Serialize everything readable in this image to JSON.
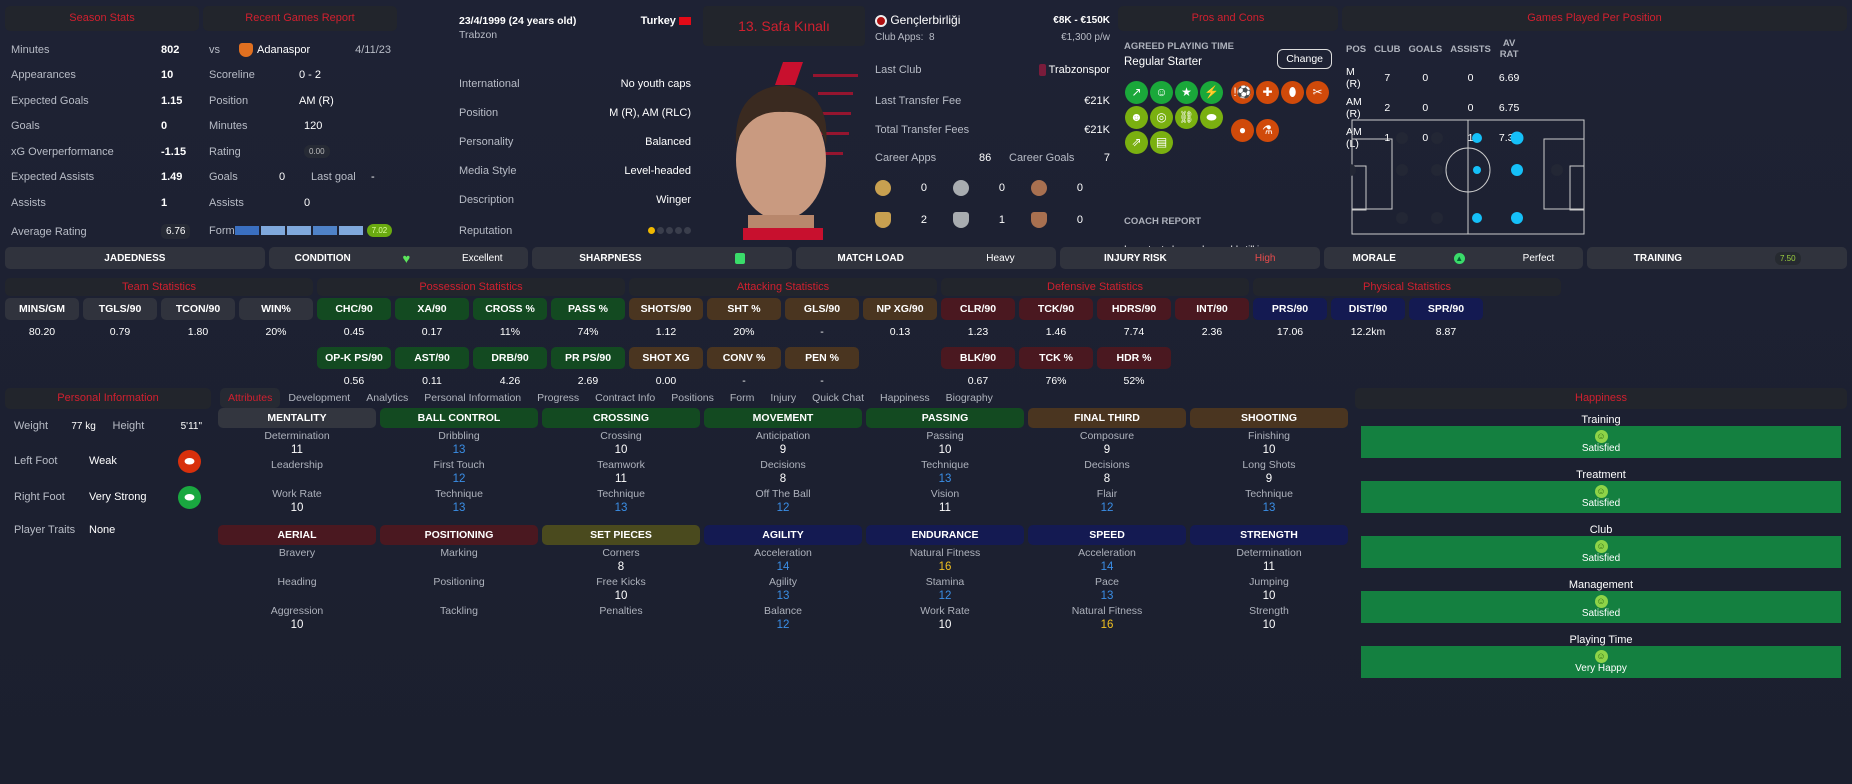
{
  "season_stats": {
    "title": "Season Stats",
    "rows": [
      {
        "label": "Minutes",
        "value": "802"
      },
      {
        "label": "Appearances",
        "value": "10"
      },
      {
        "label": "Expected Goals",
        "value": "1.15"
      },
      {
        "label": "Goals",
        "value": "0"
      },
      {
        "label": "xG Overperformance",
        "value": "-1.15"
      },
      {
        "label": "Expected Assists",
        "value": "1.49"
      },
      {
        "label": "Assists",
        "value": "1"
      },
      {
        "label": "Average Rating",
        "value": "6.76"
      }
    ]
  },
  "recent_games": {
    "title": "Recent Games Report",
    "vs": "vs",
    "opponent": "Adanaspor",
    "date": "4/11/23",
    "scoreline_label": "Scoreline",
    "scoreline": "0 - 2",
    "position_label": "Position",
    "position": "AM (R)",
    "minutes_label": "Minutes",
    "minutes": "120",
    "rating_label": "Rating",
    "rating": "0.00",
    "goals_label": "Goals",
    "goals": "0",
    "last_goal_label": "Last goal",
    "last_goal": "-",
    "assists_label": "Assists",
    "assists": "0",
    "form_label": "Form",
    "form_rating": "7.02",
    "form_colors": [
      "#3a6fc0",
      "#7fa8dc",
      "#7fa8dc",
      "#4f82c8",
      "#7fa8dc"
    ]
  },
  "bio": {
    "dob": "23/4/1999 (24 years old)",
    "nationality": "Turkey",
    "birthplace": "Trabzon",
    "rows": [
      {
        "label": "International",
        "value": "No youth caps"
      },
      {
        "label": "Position",
        "value": "M (R), AM (RLC)"
      },
      {
        "label": "Personality",
        "value": "Balanced"
      },
      {
        "label": "Media Style",
        "value": "Level-headed"
      },
      {
        "label": "Description",
        "value": "Winger"
      }
    ],
    "reputation_label": "Reputation",
    "reputation_stars": 1,
    "reputation_max": 5
  },
  "player": {
    "name": "13. Safa Kınalı"
  },
  "club": {
    "name": "Gençlerbirliği",
    "value_range": "€8K - €150K",
    "club_apps_label": "Club Apps:",
    "club_apps": "8",
    "wage": "€1,300 p/w",
    "last_club_label": "Last Club",
    "last_club": "Trabzonspor",
    "last_fee_label": "Last Transfer Fee",
    "last_fee": "€21K",
    "total_fees_label": "Total Transfer Fees",
    "total_fees": "€21K",
    "career_apps_label": "Career Apps",
    "career_apps": "86",
    "career_goals_label": "Career Goals",
    "career_goals": "7",
    "medals": [
      "0",
      "0",
      "0"
    ],
    "trophies": [
      "2",
      "1",
      "0"
    ]
  },
  "pros_cons": {
    "title": "Pros and Cons",
    "agreed_label": "AGREED PLAYING TIME",
    "agreed": "Regular Starter",
    "change_label": "Change",
    "coach_report_label": "COACH REPORT",
    "coach_report": "Important player who could still improve",
    "pros_icons": [
      "trend-up",
      "cone-smile",
      "star",
      "boots",
      "head",
      "target",
      "chain",
      "boot",
      "cone-trend",
      "report"
    ],
    "cons_icons": [
      "ball-alert",
      "medical-cross",
      "foot",
      "broken-bone",
      "ball-head",
      "flask"
    ]
  },
  "positions": {
    "title": "Games Played Per Position",
    "headers": [
      "POS",
      "CLUB",
      "GOALS",
      "ASSISTS",
      "AV RAT"
    ],
    "rows": [
      [
        "M (R)",
        "7",
        "0",
        "0",
        "6.69"
      ],
      [
        "AM (R)",
        "2",
        "0",
        "0",
        "6.75"
      ],
      [
        "AM (L)",
        "1",
        "0",
        "1",
        "7.30"
      ]
    ]
  },
  "status": [
    {
      "label": "JADEDNESS",
      "value": ""
    },
    {
      "label": "CONDITION",
      "value": "Excellent",
      "icon": "heart"
    },
    {
      "label": "SHARPNESS",
      "value": "",
      "icon": "thumbs-up"
    },
    {
      "label": "MATCH LOAD",
      "value": "Heavy"
    },
    {
      "label": "INJURY RISK",
      "value": "High",
      "color": "#e84c4c"
    },
    {
      "label": "MORALE",
      "value": "Perfect",
      "icon": "arrow-up"
    },
    {
      "label": "TRAINING",
      "value": "7.50"
    }
  ],
  "stat_groups": [
    {
      "title": "Team Statistics",
      "color": "#30333d",
      "row1": [
        [
          "MINS/GM",
          "80.20"
        ],
        [
          "TGLS/90",
          "0.79"
        ],
        [
          "TCON/90",
          "1.80"
        ],
        [
          "WIN%",
          "20%"
        ]
      ],
      "row2": []
    },
    {
      "title": "Possession Statistics",
      "color": "#134a21",
      "row1": [
        [
          "CHC/90",
          "0.45"
        ],
        [
          "XA/90",
          "0.17"
        ],
        [
          "CROSS %",
          "11%"
        ],
        [
          "PASS %",
          "74%"
        ]
      ],
      "row2": [
        [
          "OP-K PS/90",
          "0.56"
        ],
        [
          "AST/90",
          "0.11"
        ],
        [
          "DRB/90",
          "4.26"
        ],
        [
          "PR PS/90",
          "2.69"
        ]
      ]
    },
    {
      "title": "Attacking Statistics",
      "color": "#4a3520",
      "row1": [
        [
          "SHOTS/90",
          "1.12"
        ],
        [
          "SHT %",
          "20%"
        ],
        [
          "GLS/90",
          "-"
        ],
        [
          "NP XG/90",
          "0.13"
        ]
      ],
      "row2": [
        [
          "SHOT XG",
          "0.00"
        ],
        [
          "CONV %",
          "-"
        ],
        [
          "PEN %",
          "-"
        ]
      ]
    },
    {
      "title": "Defensive Statistics",
      "color": "#4a1820",
      "row1": [
        [
          "CLR/90",
          "1.23"
        ],
        [
          "TCK/90",
          "1.46"
        ],
        [
          "HDRS/90",
          "7.74"
        ],
        [
          "INT/90",
          "2.36"
        ]
      ],
      "row2": [
        [
          "BLK/90",
          "0.67"
        ],
        [
          "TCK %",
          "76%"
        ],
        [
          "HDR %",
          "52%"
        ]
      ]
    },
    {
      "title": "Physical Statistics",
      "color": "#141a52",
      "row1": [
        [
          "PRS/90",
          "17.06"
        ],
        [
          "DIST/90",
          "12.2km"
        ],
        [
          "SPR/90",
          "8.87"
        ]
      ],
      "row2": []
    }
  ],
  "personal": {
    "title": "Personal Information",
    "weight_label": "Weight",
    "weight": "77 kg",
    "height_label": "Height",
    "height": "5'11\"",
    "left_foot_label": "Left Foot",
    "left_foot": "Weak",
    "right_foot_label": "Right Foot",
    "right_foot": "Very Strong",
    "traits_label": "Player Traits",
    "traits": "None"
  },
  "tabs": [
    "Attributes",
    "Development",
    "Analytics",
    "Personal Information",
    "Progress",
    "Contract Info",
    "Positions",
    "Form",
    "Injury",
    "Quick Chat",
    "Happiness",
    "Biography"
  ],
  "attributes": [
    [
      {
        "title": "MENTALITY",
        "color": "#33363f",
        "items": [
          [
            "Determination",
            "11"
          ],
          [
            "Leadership",
            ""
          ],
          [
            "Work Rate",
            "10"
          ]
        ]
      },
      {
        "title": "BALL CONTROL",
        "color": "#134a21",
        "items": [
          [
            "Dribbling",
            "13"
          ],
          [
            "First Touch",
            "12"
          ],
          [
            "Technique",
            "13"
          ]
        ]
      },
      {
        "title": "CROSSING",
        "color": "#134a21",
        "items": [
          [
            "Crossing",
            "10"
          ],
          [
            "Teamwork",
            "11"
          ],
          [
            "Technique",
            "13"
          ]
        ]
      },
      {
        "title": "MOVEMENT",
        "color": "#134a21",
        "items": [
          [
            "Anticipation",
            "9"
          ],
          [
            "Decisions",
            "8"
          ],
          [
            "Off The Ball",
            "12"
          ]
        ]
      },
      {
        "title": "PASSING",
        "color": "#134a21",
        "items": [
          [
            "Passing",
            "10"
          ],
          [
            "Technique",
            "13"
          ],
          [
            "Vision",
            "11"
          ]
        ]
      },
      {
        "title": "FINAL THIRD",
        "color": "#4a3520",
        "items": [
          [
            "Composure",
            "9"
          ],
          [
            "Decisions",
            "8"
          ],
          [
            "Flair",
            "12"
          ]
        ]
      },
      {
        "title": "SHOOTING",
        "color": "#4a3520",
        "items": [
          [
            "Finishing",
            "10"
          ],
          [
            "Long Shots",
            "9"
          ],
          [
            "Technique",
            "13"
          ]
        ]
      }
    ],
    [
      {
        "title": "AERIAL",
        "color": "#4a1820",
        "items": [
          [
            "Bravery",
            ""
          ],
          [
            "Heading",
            ""
          ],
          [
            "Aggression",
            "10"
          ]
        ]
      },
      {
        "title": "POSITIONING",
        "color": "#4a1820",
        "items": [
          [
            "Marking",
            ""
          ],
          [
            "Positioning",
            ""
          ],
          [
            "Tackling",
            ""
          ]
        ]
      },
      {
        "title": "SET PIECES",
        "color": "#4a4a1e",
        "items": [
          [
            "Corners",
            "8"
          ],
          [
            "Free Kicks",
            "10"
          ],
          [
            "Penalties",
            ""
          ]
        ]
      },
      {
        "title": "AGILITY",
        "color": "#141a52",
        "items": [
          [
            "Acceleration",
            "14"
          ],
          [
            "Agility",
            "13"
          ],
          [
            "Balance",
            "12"
          ]
        ]
      },
      {
        "title": "ENDURANCE",
        "color": "#141a52",
        "items": [
          [
            "Natural Fitness",
            "16"
          ],
          [
            "Stamina",
            "12"
          ],
          [
            "Work Rate",
            "10"
          ]
        ]
      },
      {
        "title": "SPEED",
        "color": "#141a52",
        "items": [
          [
            "Acceleration",
            "14"
          ],
          [
            "Pace",
            "13"
          ],
          [
            "Natural Fitness",
            "16"
          ]
        ]
      },
      {
        "title": "STRENGTH",
        "color": "#141a52",
        "items": [
          [
            "Determination",
            "11"
          ],
          [
            "Jumping",
            "10"
          ],
          [
            "Strength",
            "10"
          ]
        ]
      }
    ]
  ],
  "happiness": {
    "title": "Happiness",
    "items": [
      {
        "label": "Training",
        "status": "Satisfied"
      },
      {
        "label": "Treatment",
        "status": "Satisfied"
      },
      {
        "label": "Club",
        "status": "Satisfied"
      },
      {
        "label": "Management",
        "status": "Satisfied"
      },
      {
        "label": "Playing Time",
        "status": "Very Happy"
      }
    ]
  }
}
